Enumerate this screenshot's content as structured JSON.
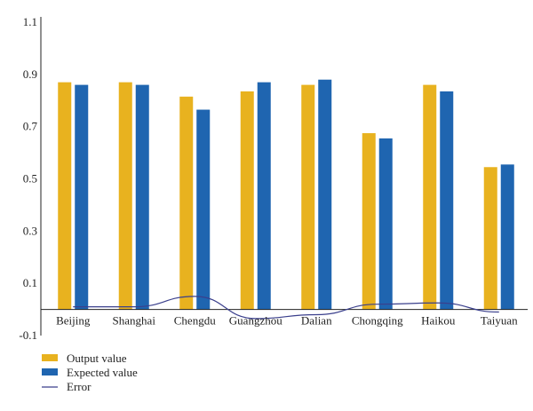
{
  "chart_data": {
    "type": "bar",
    "categories": [
      "Beijing",
      "Shanghai",
      "Chengdu",
      "Guangzhou",
      "Dalian",
      "Chongqing",
      "Haikou",
      "Taiyuan"
    ],
    "series": [
      {
        "name": "Output value",
        "kind": "bar",
        "color": "#E8B21F",
        "values": [
          0.87,
          0.87,
          0.815,
          0.835,
          0.86,
          0.675,
          0.86,
          0.545
        ]
      },
      {
        "name": "Expected value",
        "kind": "bar",
        "color": "#1F65B0",
        "values": [
          0.86,
          0.86,
          0.765,
          0.87,
          0.88,
          0.655,
          0.835,
          0.555
        ]
      },
      {
        "name": "Error",
        "kind": "line",
        "color": "#3A3F8C",
        "values": [
          0.01,
          0.01,
          0.05,
          -0.035,
          -0.02,
          0.02,
          0.025,
          -0.01
        ]
      }
    ],
    "yticks": [
      "1.1",
      "0.9",
      "0.7",
      "0.5",
      "0.3",
      "0.1",
      "-0.1"
    ],
    "ylim": [
      -0.1,
      1.1
    ],
    "legend_position": "bottom-left",
    "grid": false
  }
}
